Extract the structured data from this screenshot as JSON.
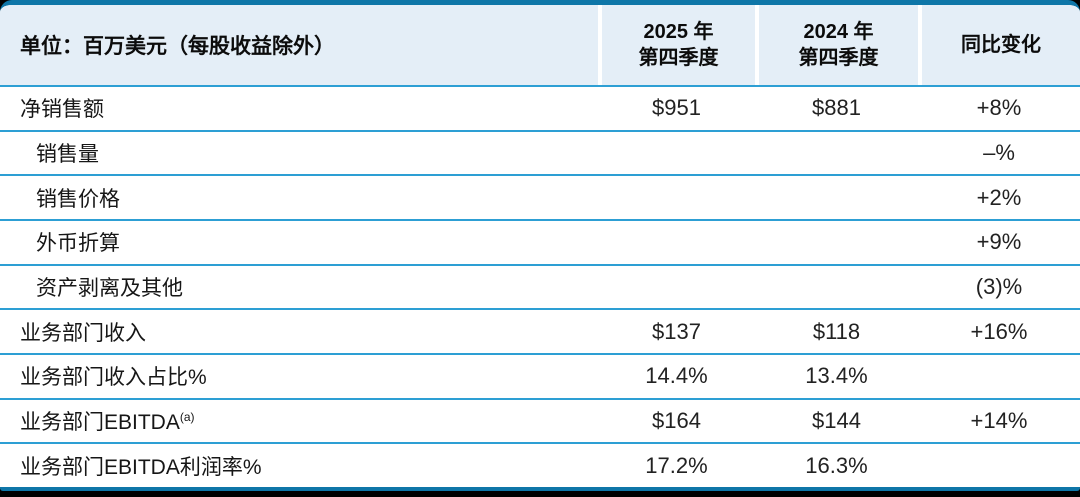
{
  "table": {
    "unit_header": "单位：百万美元（每股收益除外）",
    "columns": [
      {
        "label": "2025 年\n第四季度"
      },
      {
        "label": "2024 年\n第四季度"
      },
      {
        "label": "同比变化"
      }
    ],
    "rows": [
      {
        "label": "净销售额",
        "q4_2025": "$951",
        "q4_2024": "$881",
        "yoy": "+8%"
      },
      {
        "label": "销售量",
        "q4_2025": "",
        "q4_2024": "",
        "yoy": "–%"
      },
      {
        "label": "销售价格",
        "q4_2025": "",
        "q4_2024": "",
        "yoy": "+2%"
      },
      {
        "label": "外币折算",
        "q4_2025": "",
        "q4_2024": "",
        "yoy": "+9%"
      },
      {
        "label": "资产剥离及其他",
        "q4_2025": "",
        "q4_2024": "",
        "yoy": "(3)%"
      },
      {
        "label": "业务部门收入",
        "q4_2025": "$137",
        "q4_2024": "$118",
        "yoy": "+16%"
      },
      {
        "label": "业务部门收入占比%",
        "q4_2025": "14.4%",
        "q4_2024": "13.4%",
        "yoy": ""
      },
      {
        "label": "业务部门EBITDA",
        "label_sup": "(a)",
        "q4_2025": "$164",
        "q4_2024": "$144",
        "yoy": "+14%"
      },
      {
        "label": "业务部门EBITDA利润率%",
        "q4_2025": "17.2%",
        "q4_2024": "16.3%",
        "yoy": ""
      }
    ]
  },
  "colors": {
    "frame_bg": "#000000",
    "top_border": "#0e76a8",
    "bottom_border": "#0e76a8",
    "header_bg": "#e4eef7",
    "row_divider": "#2d9fd4",
    "text": "#161616"
  }
}
